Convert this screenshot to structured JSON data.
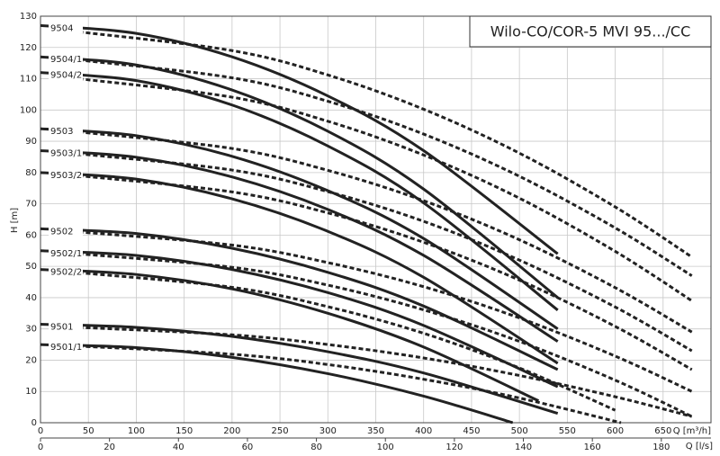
{
  "chart_data": {
    "type": "line",
    "title": "Wilo-CO/COR-5 MVI 95.../CC",
    "ylabel": "H [m]",
    "xlabel": "Q [m³/h]",
    "x2label": "Q [l/s]",
    "xlim": [
      0,
      700
    ],
    "xticks": [
      0,
      50,
      100,
      150,
      200,
      250,
      300,
      350,
      400,
      450,
      500,
      550,
      600,
      650
    ],
    "x2lim": [
      0,
      194.4
    ],
    "x2ticks": [
      0,
      20,
      40,
      60,
      80,
      100,
      120,
      140,
      160,
      180
    ],
    "ylim": [
      0,
      130
    ],
    "yticks": [
      0,
      10,
      20,
      30,
      40,
      50,
      60,
      70,
      80,
      90,
      100,
      110,
      120,
      130
    ],
    "grid": true,
    "color": "#222222",
    "series": [
      {
        "name": "9504",
        "x": [
          0,
          100,
          200,
          300,
          400,
          540
        ],
        "values": [
          127,
          124.5,
          117,
          104.5,
          87,
          54
        ],
        "dashed_x": [
          40,
          200,
          300,
          400,
          500,
          600,
          680
        ],
        "dashed_values": [
          125,
          119,
          111.2,
          100.25,
          86.2,
          69,
          53
        ]
      },
      {
        "name": "9504/1",
        "x": [
          0,
          100,
          200,
          300,
          400,
          540
        ],
        "values": [
          117,
          114.4,
          106.4,
          93.2,
          74.7,
          40
        ],
        "dashed_x": [
          40,
          200,
          300,
          400,
          500,
          600,
          680
        ],
        "dashed_values": [
          116,
          110.3,
          102.8,
          92.3,
          78.8,
          62.3,
          47
        ]
      },
      {
        "name": "9504/2",
        "x": [
          0,
          100,
          200,
          300,
          400,
          540
        ],
        "values": [
          112,
          109.4,
          101.6,
          88.5,
          70.3,
          36
        ],
        "dashed_x": [
          40,
          200,
          300,
          400,
          500,
          600,
          680
        ],
        "dashed_values": [
          110,
          104.1,
          96.4,
          85.6,
          71.8,
          54.8,
          39
        ]
      },
      {
        "name": "9503",
        "x": [
          0,
          100,
          200,
          300,
          400,
          540
        ],
        "values": [
          94,
          91.8,
          85.2,
          74.2,
          58.9,
          30
        ],
        "dashed_x": [
          40,
          200,
          300,
          400,
          500,
          600,
          680
        ],
        "dashed_values": [
          93,
          87.7,
          80.7,
          71,
          58.5,
          43.2,
          29
        ]
      },
      {
        "name": "9503/1",
        "x": [
          0,
          100,
          200,
          300,
          400,
          540
        ],
        "values": [
          87,
          84.9,
          78.6,
          68.2,
          53.5,
          26
        ],
        "dashed_x": [
          40,
          200,
          300,
          400,
          500,
          600,
          680
        ],
        "dashed_values": [
          86,
          80.8,
          73.9,
          64.4,
          52,
          37,
          23
        ]
      },
      {
        "name": "9503/2",
        "x": [
          0,
          100,
          200,
          300,
          400,
          540
        ],
        "values": [
          80,
          77.9,
          71.6,
          61.2,
          46.5,
          19
        ],
        "dashed_x": [
          40,
          200,
          300,
          400,
          500,
          600,
          680
        ],
        "dashed_values": [
          79,
          73.8,
          67.1,
          57.7,
          45.6,
          30.8,
          17
        ]
      },
      {
        "name": "9502",
        "x": [
          0,
          100,
          200,
          300,
          400,
          540
        ],
        "values": [
          62,
          60.5,
          55.8,
          48.1,
          37.3,
          17
        ],
        "dashed_x": [
          40,
          200,
          300,
          400,
          500,
          600,
          680
        ],
        "dashed_values": [
          61,
          56.8,
          51.2,
          43.5,
          33.5,
          21.3,
          10
        ]
      },
      {
        "name": "9502/1",
        "x": [
          0,
          100,
          200,
          300,
          400,
          540
        ],
        "values": [
          55,
          53.5,
          49,
          41.6,
          31.1,
          11.5
        ],
        "dashed_x": [
          40,
          200,
          300,
          400,
          500,
          600,
          680
        ],
        "dashed_values": [
          54,
          49.7,
          44,
          36.1,
          26,
          13.6,
          2
        ]
      },
      {
        "name": "9502/2",
        "x": [
          0,
          100,
          200,
          300,
          400,
          520
        ],
        "values": [
          49,
          47.4,
          42.8,
          35,
          24.2,
          7
        ],
        "dashed_x": [
          40,
          200,
          300,
          400,
          500,
          600
        ],
        "dashed_values": [
          48,
          43.3,
          37.1,
          28.6,
          17.5,
          4
        ]
      },
      {
        "name": "9501",
        "x": [
          0,
          100,
          200,
          300,
          400,
          540
        ],
        "values": [
          31.5,
          30.5,
          27.6,
          22.7,
          15.9,
          3
        ],
        "dashed_x": [
          40,
          200,
          300,
          400,
          500,
          600,
          680
        ],
        "dashed_values": [
          30.5,
          28.1,
          25,
          20.7,
          15.1,
          8.3,
          2
        ]
      },
      {
        "name": "9501/1",
        "x": [
          0,
          100,
          200,
          300,
          400,
          493
        ],
        "values": [
          25,
          24,
          20.9,
          15.7,
          8.5,
          0
        ],
        "dashed_x": [
          40,
          200,
          300,
          400,
          500,
          606
        ],
        "dashed_values": [
          24.5,
          21.9,
          18.6,
          13.9,
          7.9,
          0
        ]
      }
    ]
  }
}
